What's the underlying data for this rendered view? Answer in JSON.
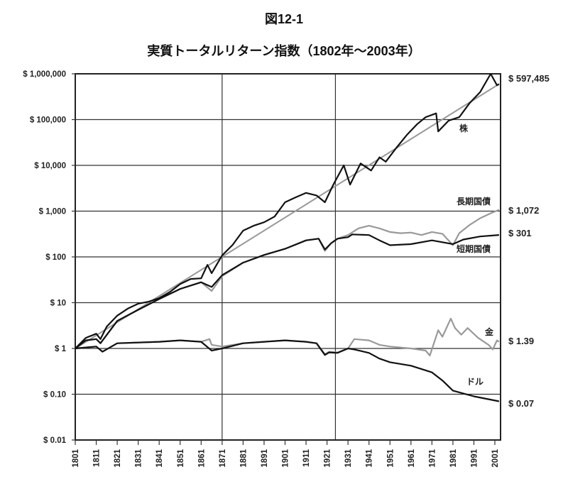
{
  "chart_data": {
    "type": "line",
    "figure_label": "図12-1",
    "title": "実質トータルリターン指数（1802年～2003年）",
    "xlabel": "",
    "ylabel": "",
    "yscale": "log",
    "ylim": [
      0.01,
      1000000
    ],
    "xlim": [
      1801,
      2003
    ],
    "grid": true,
    "y_ticks": [
      "$ 1,000,000",
      "$ 100,000",
      "$ 10,000",
      "$ 1,000",
      "$ 100",
      "$ 10",
      "$ 1",
      "$ 0.10",
      "$ 0.01"
    ],
    "y_tick_values": [
      1000000,
      100000,
      10000,
      1000,
      100,
      10,
      1,
      0.1,
      0.01
    ],
    "x_ticks": [
      "1801",
      "1811",
      "1821",
      "1831",
      "1841",
      "1851",
      "1861",
      "1871",
      "1881",
      "1891",
      "1901",
      "1911",
      "1921",
      "1931",
      "1941",
      "1951",
      "1961",
      "1971",
      "1981",
      "1991",
      "2001"
    ],
    "vertical_gridlines_years": [
      1871,
      1925
    ],
    "series": [
      {
        "name": "株",
        "color": "#111111",
        "end_label": "$ 597,485",
        "points": [
          [
            1801,
            1
          ],
          [
            1806,
            1.7
          ],
          [
            1811,
            2.1
          ],
          [
            1813,
            1.6
          ],
          [
            1816,
            3
          ],
          [
            1821,
            5.2
          ],
          [
            1826,
            7.4
          ],
          [
            1831,
            9.5
          ],
          [
            1836,
            10.5
          ],
          [
            1841,
            12.6
          ],
          [
            1846,
            17
          ],
          [
            1851,
            25.6
          ],
          [
            1856,
            33
          ],
          [
            1861,
            34
          ],
          [
            1864,
            67
          ],
          [
            1866,
            44
          ],
          [
            1871,
            108
          ],
          [
            1876,
            183
          ],
          [
            1881,
            375
          ],
          [
            1886,
            480
          ],
          [
            1891,
            570
          ],
          [
            1896,
            760
          ],
          [
            1901,
            1560
          ],
          [
            1906,
            2000
          ],
          [
            1911,
            2500
          ],
          [
            1916,
            2200
          ],
          [
            1920,
            1560
          ],
          [
            1924,
            3800
          ],
          [
            1929,
            10000
          ],
          [
            1932,
            3800
          ],
          [
            1937,
            11000
          ],
          [
            1942,
            7700
          ],
          [
            1946,
            15000
          ],
          [
            1949,
            12000
          ],
          [
            1954,
            24000
          ],
          [
            1959,
            46000
          ],
          [
            1964,
            80000
          ],
          [
            1968,
            113000
          ],
          [
            1973,
            137000
          ],
          [
            1974,
            55000
          ],
          [
            1979,
            95000
          ],
          [
            1984,
            113000
          ],
          [
            1989,
            230000
          ],
          [
            1994,
            400000
          ],
          [
            1999,
            1000000
          ],
          [
            2002,
            560000
          ],
          [
            2003,
            597485
          ]
        ]
      },
      {
        "name": "",
        "color": "#999999",
        "trend": true,
        "points": [
          [
            1801,
            1
          ],
          [
            2003,
            597485
          ]
        ]
      },
      {
        "name": "長期国債",
        "color": "#999999",
        "end_label": "$ 1,072",
        "points": [
          [
            1801,
            1
          ],
          [
            1806,
            1.5
          ],
          [
            1811,
            1.6
          ],
          [
            1813,
            1.3
          ],
          [
            1821,
            4
          ],
          [
            1831,
            7
          ],
          [
            1841,
            12
          ],
          [
            1851,
            20
          ],
          [
            1861,
            28
          ],
          [
            1866,
            18
          ],
          [
            1871,
            38
          ],
          [
            1881,
            75
          ],
          [
            1891,
            110
          ],
          [
            1901,
            150
          ],
          [
            1911,
            230
          ],
          [
            1917,
            250
          ],
          [
            1920,
            135
          ],
          [
            1923,
            200
          ],
          [
            1926,
            250
          ],
          [
            1931,
            300
          ],
          [
            1936,
            420
          ],
          [
            1941,
            480
          ],
          [
            1946,
            420
          ],
          [
            1951,
            350
          ],
          [
            1956,
            330
          ],
          [
            1961,
            340
          ],
          [
            1966,
            300
          ],
          [
            1971,
            350
          ],
          [
            1976,
            320
          ],
          [
            1981,
            180
          ],
          [
            1984,
            330
          ],
          [
            1989,
            500
          ],
          [
            1994,
            700
          ],
          [
            1999,
            900
          ],
          [
            2003,
            1072
          ]
        ]
      },
      {
        "name": "短期国債",
        "color": "#111111",
        "end_label": "$ 301",
        "points": [
          [
            1801,
            1
          ],
          [
            1806,
            1.5
          ],
          [
            1811,
            1.6
          ],
          [
            1813,
            1.3
          ],
          [
            1821,
            4
          ],
          [
            1831,
            7
          ],
          [
            1841,
            12
          ],
          [
            1851,
            20
          ],
          [
            1861,
            28
          ],
          [
            1866,
            22
          ],
          [
            1871,
            40
          ],
          [
            1881,
            75
          ],
          [
            1891,
            110
          ],
          [
            1901,
            150
          ],
          [
            1911,
            230
          ],
          [
            1917,
            250
          ],
          [
            1920,
            145
          ],
          [
            1923,
            200
          ],
          [
            1926,
            250
          ],
          [
            1931,
            270
          ],
          [
            1933,
            310
          ],
          [
            1941,
            300
          ],
          [
            1946,
            230
          ],
          [
            1951,
            180
          ],
          [
            1961,
            190
          ],
          [
            1971,
            230
          ],
          [
            1981,
            190
          ],
          [
            1986,
            240
          ],
          [
            1994,
            280
          ],
          [
            2003,
            301
          ]
        ]
      },
      {
        "name": "金",
        "color": "#999999",
        "end_label": "$ 1.39",
        "points": [
          [
            1801,
            1
          ],
          [
            1811,
            1.1
          ],
          [
            1814,
            0.85
          ],
          [
            1821,
            1.3
          ],
          [
            1841,
            1.4
          ],
          [
            1851,
            1.5
          ],
          [
            1861,
            1.4
          ],
          [
            1865,
            1.6
          ],
          [
            1866,
            1.2
          ],
          [
            1871,
            1.1
          ],
          [
            1881,
            1.3
          ],
          [
            1891,
            1.4
          ],
          [
            1901,
            1.5
          ],
          [
            1911,
            1.4
          ],
          [
            1916,
            1.3
          ],
          [
            1920,
            0.75
          ],
          [
            1922,
            0.85
          ],
          [
            1926,
            0.82
          ],
          [
            1931,
            1.0
          ],
          [
            1934,
            1.6
          ],
          [
            1941,
            1.5
          ],
          [
            1946,
            1.2
          ],
          [
            1951,
            1.1
          ],
          [
            1961,
            1.0
          ],
          [
            1968,
            0.9
          ],
          [
            1970,
            0.7
          ],
          [
            1974,
            2.5
          ],
          [
            1976,
            1.8
          ],
          [
            1980,
            4.5
          ],
          [
            1982,
            2.8
          ],
          [
            1985,
            2.0
          ],
          [
            1988,
            2.8
          ],
          [
            1993,
            1.7
          ],
          [
            1998,
            1.2
          ],
          [
            2000,
            0.95
          ],
          [
            2002,
            1.5
          ],
          [
            2003,
            1.39
          ]
        ]
      },
      {
        "name": "ドル",
        "color": "#111111",
        "end_label": "$ 0.07",
        "points": [
          [
            1801,
            1
          ],
          [
            1811,
            1.1
          ],
          [
            1814,
            0.85
          ],
          [
            1821,
            1.3
          ],
          [
            1841,
            1.4
          ],
          [
            1851,
            1.5
          ],
          [
            1861,
            1.4
          ],
          [
            1866,
            0.9
          ],
          [
            1871,
            1.0
          ],
          [
            1881,
            1.3
          ],
          [
            1891,
            1.4
          ],
          [
            1901,
            1.5
          ],
          [
            1911,
            1.4
          ],
          [
            1916,
            1.3
          ],
          [
            1920,
            0.72
          ],
          [
            1922,
            0.82
          ],
          [
            1926,
            0.8
          ],
          [
            1931,
            1.0
          ],
          [
            1934,
            0.95
          ],
          [
            1941,
            0.8
          ],
          [
            1946,
            0.6
          ],
          [
            1951,
            0.5
          ],
          [
            1961,
            0.42
          ],
          [
            1971,
            0.3
          ],
          [
            1976,
            0.2
          ],
          [
            1981,
            0.12
          ],
          [
            1991,
            0.09
          ],
          [
            2003,
            0.07
          ]
        ]
      }
    ]
  }
}
